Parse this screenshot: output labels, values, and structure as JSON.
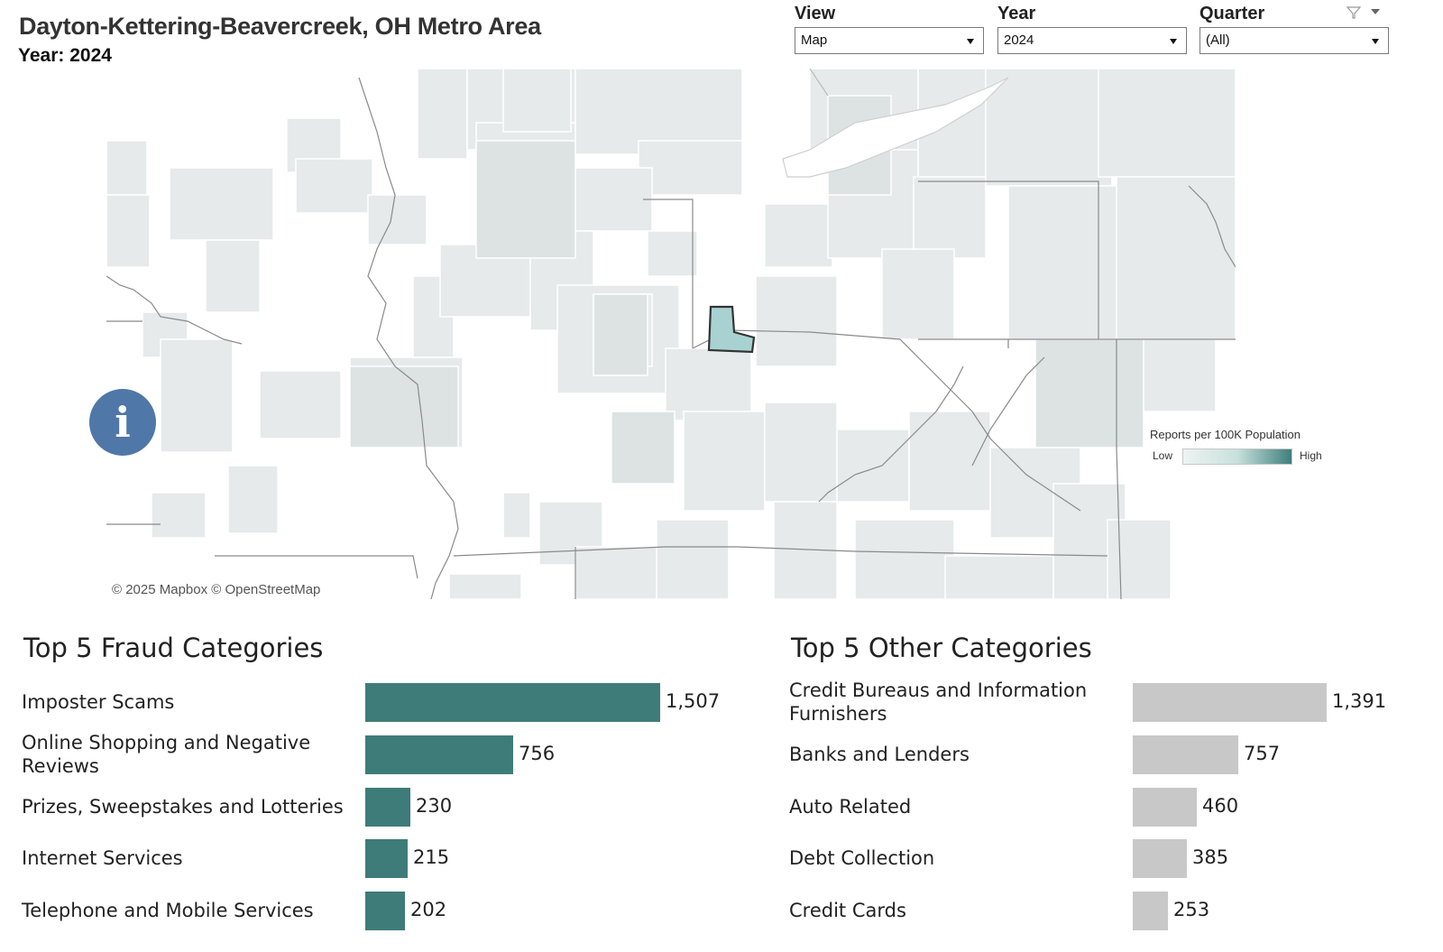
{
  "header": {
    "title": "Dayton-Kettering-Beavercreek, OH Metro Area",
    "year_line": "Year: 2024"
  },
  "filters": {
    "view": {
      "label": "View",
      "value": "Map"
    },
    "year": {
      "label": "Year",
      "value": "2024"
    },
    "quarter": {
      "label": "Quarter",
      "value": "(All)"
    }
  },
  "map": {
    "attribution": "© 2025 Mapbox © OpenStreetMap",
    "legend": {
      "title": "Reports per 100K Population",
      "low": "Low",
      "high": "High"
    },
    "colors": {
      "region": "#e6eaea",
      "highlight": "#a8d2d2",
      "border": "#4a4a4a"
    }
  },
  "info_icon": "i",
  "fraud": {
    "title": "Top 5 Fraud Categories",
    "color": "#3e7c79",
    "max": 1507,
    "items": [
      {
        "label": "Imposter Scams",
        "value": 1507,
        "display": "1,507"
      },
      {
        "label": "Online Shopping and Negative Reviews",
        "value": 756,
        "display": "756"
      },
      {
        "label": "Prizes, Sweepstakes and Lotteries",
        "value": 230,
        "display": "230"
      },
      {
        "label": "Internet Services",
        "value": 215,
        "display": "215"
      },
      {
        "label": "Telephone and Mobile Services",
        "value": 202,
        "display": "202"
      }
    ]
  },
  "other": {
    "title": "Top 5 Other Categories",
    "color": "#c8c8c8",
    "max": 1391,
    "items": [
      {
        "label": "Credit Bureaus and Information Furnishers",
        "value": 1391,
        "display": "1,391"
      },
      {
        "label": "Banks and Lenders",
        "value": 757,
        "display": "757"
      },
      {
        "label": "Auto Related",
        "value": 460,
        "display": "460"
      },
      {
        "label": "Debt Collection",
        "value": 385,
        "display": "385"
      },
      {
        "label": "Credit Cards",
        "value": 253,
        "display": "253"
      }
    ]
  }
}
